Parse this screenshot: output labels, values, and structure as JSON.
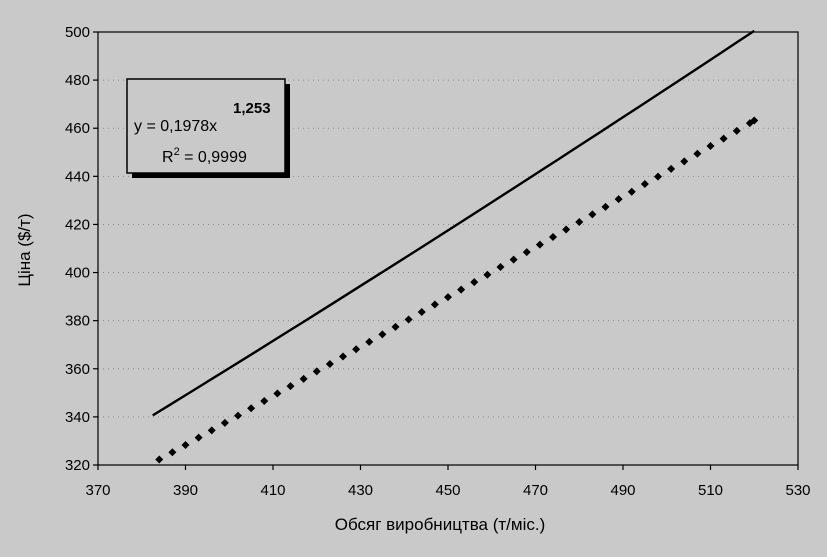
{
  "chart_data": {
    "type": "scatter",
    "title": "",
    "xlabel": "Обсяг виробництва (т/міс.)",
    "ylabel": "Ціна ($/т)",
    "xlim": [
      370,
      530
    ],
    "ylim": [
      320,
      500
    ],
    "xticks": [
      370,
      390,
      410,
      430,
      450,
      470,
      490,
      510,
      530
    ],
    "yticks": [
      320,
      340,
      360,
      380,
      400,
      420,
      440,
      460,
      480,
      500
    ],
    "xtick_labels": [
      "370",
      "390",
      "410",
      "430",
      "450",
      "470",
      "490",
      "510",
      "530"
    ],
    "ytick_labels": [
      "320",
      "340",
      "360",
      "380",
      "400",
      "420",
      "440",
      "460",
      "480",
      "500"
    ],
    "grid": true,
    "legend": "none",
    "marker": "diamond",
    "fit": {
      "equation_prefix": "y = 0,1978x",
      "equation_exponent": "1,253",
      "r2_prefix": "R",
      "r2_sup": "2",
      "r2_suffix": " = 0,9999",
      "coef": 0.1978,
      "exponent": 1.253
    },
    "series": [
      {
        "x": [
          384,
          387,
          390,
          393,
          396,
          399,
          402,
          405,
          408,
          411,
          414,
          417,
          420,
          423,
          426,
          429,
          432,
          435,
          438,
          441,
          444,
          447,
          450,
          453,
          456,
          459,
          462,
          465,
          468,
          471,
          474,
          477,
          480,
          483,
          486,
          489,
          492,
          495,
          498,
          501,
          504,
          507,
          510,
          513,
          516,
          519,
          520
        ],
        "y": [
          322.3,
          325.3,
          328.3,
          331.4,
          334.4,
          337.5,
          340.5,
          343.6,
          346.6,
          349.7,
          352.8,
          355.8,
          358.9,
          362.0,
          365.1,
          368.1,
          371.2,
          374.3,
          377.4,
          380.5,
          383.6,
          386.7,
          389.8,
          392.9,
          396.0,
          399.1,
          402.3,
          405.4,
          408.5,
          411.6,
          414.8,
          417.9,
          421.0,
          424.2,
          427.3,
          430.5,
          433.6,
          436.8,
          439.9,
          443.1,
          446.2,
          449.4,
          452.6,
          455.7,
          458.9,
          462.1,
          463.2
        ]
      }
    ],
    "colors": {
      "background": "#c9c9c9",
      "plot_area": "#c9c9c9",
      "line": "#000000",
      "marker": "#000000"
    }
  }
}
